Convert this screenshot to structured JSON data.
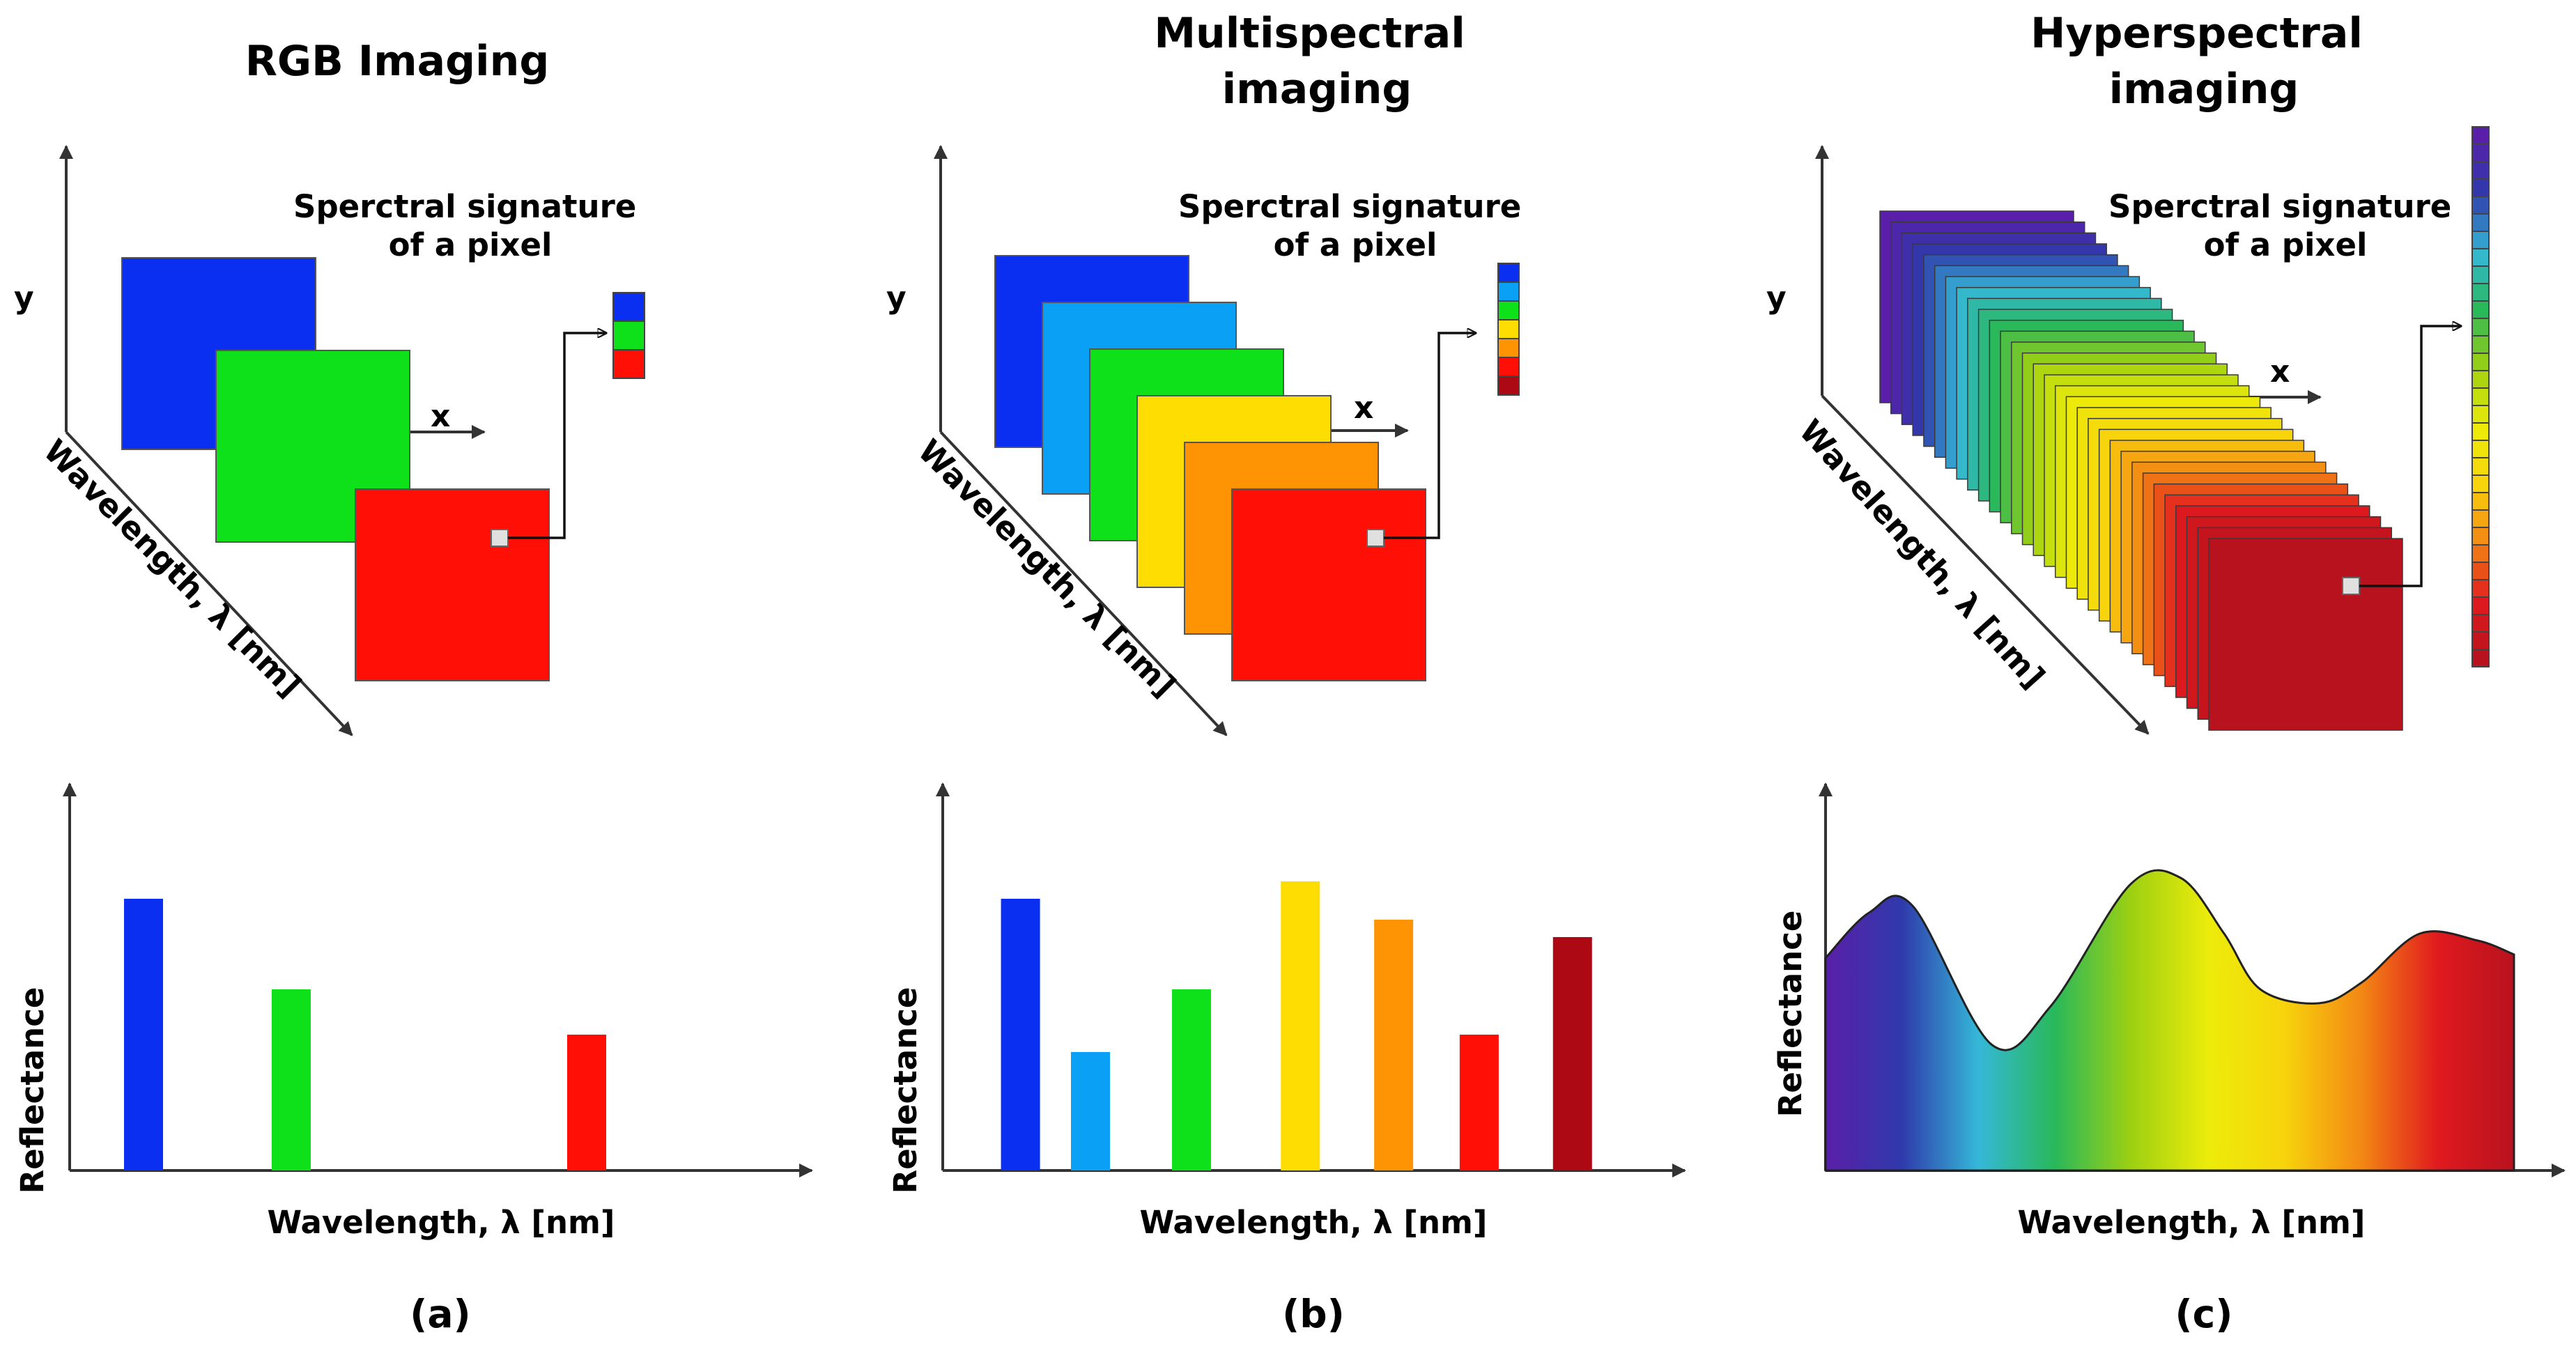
{
  "panels": [
    {
      "id": "a",
      "title_lines": [
        "RGB Imaging"
      ],
      "signature_lines": [
        "Sperctral signature",
        "of a pixel"
      ],
      "axis_y": "y",
      "axis_x": "x",
      "wavelength_axis": "Wavelength, λ [nm]",
      "chart_ylabel": "Reflectance",
      "chart_xlabel": "Wavelength, λ [nm]",
      "caption": "(a)",
      "band_colors": [
        "#0a2ff0",
        "#0ee01a",
        "#ff0f05"
      ],
      "signature_colors": [
        "#0a2ff0",
        "#0ee01a",
        "#ff0f05"
      ]
    },
    {
      "id": "b",
      "title_lines": [
        "Multispectral",
        "imaging"
      ],
      "signature_lines": [
        "Sperctral signature",
        "of a pixel"
      ],
      "axis_y": "y",
      "axis_x": "x",
      "wavelength_axis": "Wavelength, λ [nm]",
      "chart_ylabel": "Reflectance",
      "chart_xlabel": "Wavelength, λ [nm]",
      "caption": "(b)",
      "band_colors": [
        "#0a2ff0",
        "#0aa0f5",
        "#0ee01a",
        "#fedd03",
        "#fe9404",
        "#ff0f05"
      ],
      "signature_colors": [
        "#0a2ff0",
        "#0aa0f5",
        "#0ee01a",
        "#fedd03",
        "#fe9404",
        "#ff0f05",
        "#ad0914"
      ]
    },
    {
      "id": "c",
      "title_lines": [
        "Hyperspectral",
        "imaging"
      ],
      "signature_lines": [
        "Sperctral signature",
        "of a pixel"
      ],
      "axis_y": "y",
      "axis_x": "x",
      "wavelength_axis": "Wavelength, λ [nm]",
      "chart_ylabel": "Reflectance",
      "chart_xlabel": "Wavelength, λ [nm]",
      "caption": "(c)",
      "band_count": 31,
      "signature_count": 31
    }
  ],
  "chart_data": [
    {
      "type": "bar",
      "panel": "a",
      "xlabel": "Wavelength, λ [nm]",
      "ylabel": "Reflectance",
      "x": [
        1,
        3,
        7
      ],
      "xlim": [
        0,
        10
      ],
      "values": [
        0.78,
        0.52,
        0.39
      ],
      "colors": [
        "#0a2ff0",
        "#0ee01a",
        "#ff0f05"
      ],
      "ylim": [
        0,
        1
      ]
    },
    {
      "type": "bar",
      "panel": "b",
      "xlabel": "Wavelength, λ [nm]",
      "ylabel": "Reflectance",
      "x": [
        1,
        1.9,
        3.2,
        4.6,
        5.8,
        6.9,
        8.1
      ],
      "xlim": [
        0,
        9.5
      ],
      "values": [
        0.78,
        0.34,
        0.52,
        0.83,
        0.72,
        0.39,
        0.67
      ],
      "colors": [
        "#0a2ff0",
        "#0aa0f5",
        "#0ee01a",
        "#fedd03",
        "#fe9404",
        "#ff0f05",
        "#ad0914"
      ],
      "ylim": [
        0,
        1
      ]
    },
    {
      "type": "area",
      "panel": "c",
      "xlabel": "Wavelength, λ [nm]",
      "ylabel": "Reflectance",
      "x": [
        0,
        0.6,
        1.2,
        2.3,
        3.1,
        4.2,
        4.9,
        5.5,
        6.0,
        6.8,
        7.4,
        8.2,
        9.0,
        9.5
      ],
      "values": [
        0.61,
        0.74,
        0.76,
        0.36,
        0.47,
        0.82,
        0.84,
        0.68,
        0.52,
        0.48,
        0.54,
        0.68,
        0.66,
        0.62
      ],
      "gradient_colors": [
        "#5a1fa8",
        "#2f3aab",
        "#35b8d8",
        "#29b85a",
        "#9ed012",
        "#ecec0a",
        "#f7d40c",
        "#f38814",
        "#e01a1e",
        "#b8121e"
      ],
      "xlim": [
        0,
        9.5
      ],
      "ylim": [
        0,
        1
      ]
    }
  ]
}
